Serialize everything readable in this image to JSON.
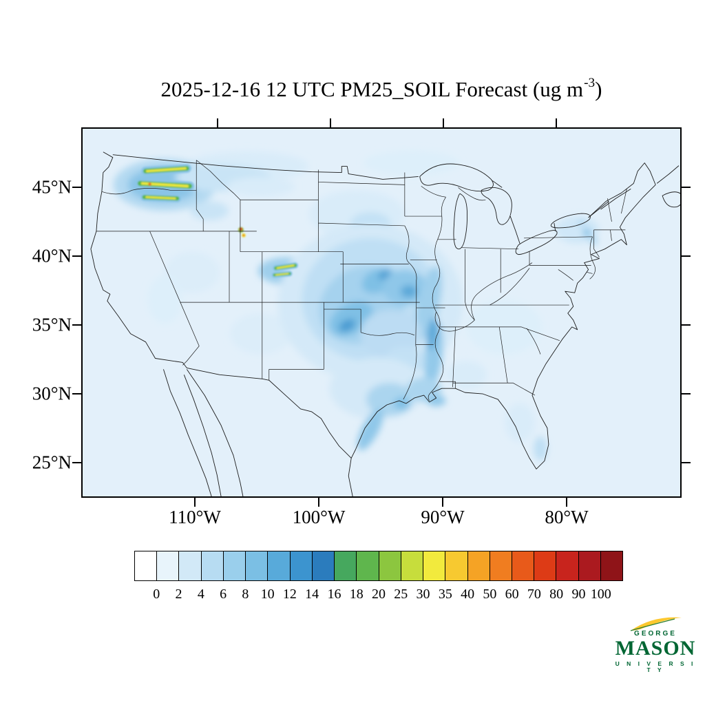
{
  "title": {
    "prefix": "2025-12-16 12 UTC PM25_SOIL Forecast (ug m",
    "superscript": "-3",
    "suffix": ")"
  },
  "map": {
    "lat_labels": [
      "45°N",
      "40°N",
      "35°N",
      "30°N",
      "25°N"
    ],
    "lon_labels": [
      "110°W",
      "100°W",
      "90°W",
      "80°W"
    ]
  },
  "colorbar": {
    "tick_labels": [
      "0",
      "2",
      "4",
      "6",
      "8",
      "10",
      "12",
      "14",
      "16",
      "18",
      "20",
      "25",
      "30",
      "35",
      "40",
      "50",
      "60",
      "70",
      "80",
      "90",
      "100"
    ],
    "colors": [
      "#ffffff",
      "#e8f4fb",
      "#d2e9f7",
      "#b7dcf2",
      "#9acfec",
      "#7bbfe4",
      "#58aada",
      "#3c94cf",
      "#2b7cbd",
      "#46a85e",
      "#5fb64d",
      "#8cc63f",
      "#c7dd3c",
      "#f2ea3d",
      "#f7c930",
      "#f5a325",
      "#f07d20",
      "#e85a1a",
      "#dd3b16",
      "#c8241d",
      "#ab1a1f",
      "#8f1418"
    ]
  },
  "logo": {
    "george": "GEORGE",
    "mason": "MASON",
    "university": "U N I V E R S I T Y"
  },
  "chart_data": {
    "type": "heatmap",
    "title": "2025-12-16 12 UTC PM25_SOIL Forecast (ug m-3)",
    "variable": "PM25_SOIL",
    "units": "ug m-3",
    "valid_time": "2025-12-16 12 UTC",
    "projection_region": "Continental United States",
    "x_axis": {
      "tick_labels": [
        "110°W",
        "100°W",
        "90°W",
        "80°W"
      ]
    },
    "y_axis": {
      "tick_labels": [
        "45°N",
        "40°N",
        "35°N",
        "30°N",
        "25°N"
      ]
    },
    "colorbar_levels": [
      0,
      2,
      4,
      6,
      8,
      10,
      12,
      14,
      16,
      18,
      20,
      25,
      30,
      35,
      40,
      50,
      60,
      70,
      80,
      90,
      100
    ],
    "colorbar_colors": [
      "#ffffff",
      "#e8f4fb",
      "#d2e9f7",
      "#b7dcf2",
      "#9acfec",
      "#7bbfe4",
      "#58aada",
      "#3c94cf",
      "#2b7cbd",
      "#46a85e",
      "#5fb64d",
      "#8cc63f",
      "#c7dd3c",
      "#f2ea3d",
      "#f7c930",
      "#f5a325",
      "#f07d20",
      "#e85a1a",
      "#dd3b16",
      "#c8241d",
      "#ab1a1f",
      "#8f1418"
    ],
    "regions_of_note": [
      {
        "area": "eastern Washington streaks",
        "approx_value": "16-40"
      },
      {
        "area": "northwest Wyoming spots",
        "approx_value": "60-100"
      },
      {
        "area": "Wyoming/Nebraska border streaks",
        "approx_value": "16-30"
      },
      {
        "area": "central plains (NE/KS/OK/MO)",
        "approx_value": "4-14"
      },
      {
        "area": "lower Mississippi valley and Texas gulf coast",
        "approx_value": "2-10"
      },
      {
        "area": "most of domain",
        "approx_value": "0-2"
      }
    ]
  }
}
